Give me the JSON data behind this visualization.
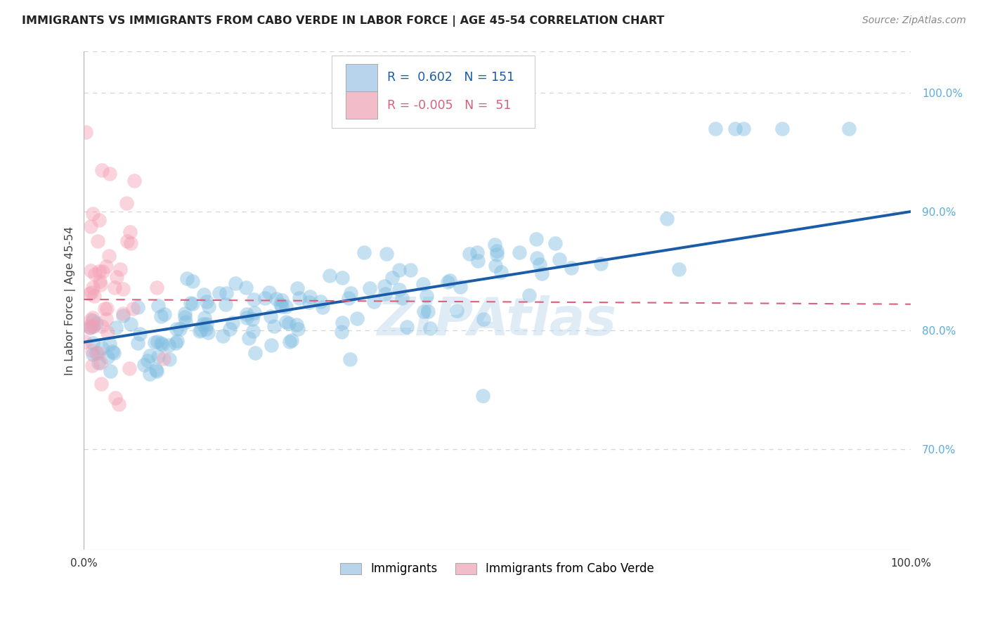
{
  "title": "IMMIGRANTS VS IMMIGRANTS FROM CABO VERDE IN LABOR FORCE | AGE 45-54 CORRELATION CHART",
  "source": "Source: ZipAtlas.com",
  "ylabel": "In Labor Force | Age 45-54",
  "xlim": [
    0.0,
    1.0
  ],
  "ylim": [
    0.615,
    1.035
  ],
  "yticks": [
    0.7,
    0.8,
    0.9,
    1.0
  ],
  "ytick_labels": [
    "70.0%",
    "80.0%",
    "90.0%",
    "100.0%"
  ],
  "xticks": [
    0.0,
    0.1,
    0.2,
    0.3,
    0.4,
    0.5,
    0.6,
    0.7,
    0.8,
    0.9,
    1.0
  ],
  "xtick_labels": [
    "0.0%",
    "",
    "",
    "",
    "",
    "",
    "",
    "",
    "",
    "",
    "100.0%"
  ],
  "R_blue": 0.602,
  "N_blue": 151,
  "R_pink": -0.005,
  "N_pink": 51,
  "blue_scatter_color": "#7fbde0",
  "pink_scatter_color": "#f4a0b5",
  "line_blue_color": "#1a5ca8",
  "line_pink_color": "#d9607a",
  "legend_box_blue": "#b8d4ed",
  "legend_box_pink": "#f2bcc8",
  "ytick_color": "#5baddb",
  "watermark_color": "#c5ddf0",
  "background_color": "#ffffff",
  "grid_color": "#d5d5d5",
  "watermark": "ZIPAtlas",
  "blue_line_y0": 0.79,
  "blue_line_y1": 0.9,
  "pink_line_y0": 0.826,
  "pink_line_y1": 0.822
}
